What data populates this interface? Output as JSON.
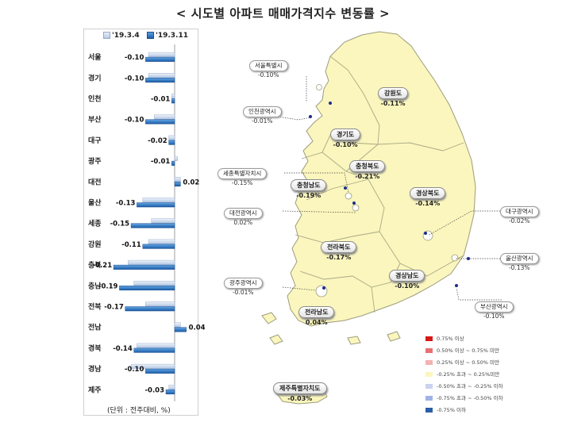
{
  "title": "< 시도별 아파트 매매가격지수 변동률 >",
  "unit_note": "(단위 : 전주대비, %)",
  "colors": {
    "old_series": "#c9d8ec",
    "new_series": "#2b6cb8",
    "land": "#fbf6bd",
    "border": "#9a9a7a"
  },
  "chart_data": {
    "type": "bar",
    "orientation": "horizontal",
    "categories": [
      "서울",
      "경기",
      "인천",
      "부산",
      "대구",
      "광주",
      "대전",
      "울산",
      "세종",
      "강원",
      "충북",
      "충남",
      "전북",
      "전남",
      "경북",
      "경남",
      "제주"
    ],
    "series": [
      {
        "name": "'19.3.4",
        "values": [
          -0.09,
          -0.09,
          -0.01,
          -0.07,
          -0.02,
          0.01,
          0.02,
          -0.11,
          -0.08,
          -0.09,
          -0.16,
          -0.14,
          -0.1,
          0.02,
          -0.13,
          -0.15,
          -0.02
        ]
      },
      {
        "name": "'19.3.11",
        "values": [
          -0.1,
          -0.1,
          -0.01,
          -0.1,
          -0.02,
          -0.01,
          0.02,
          -0.13,
          -0.15,
          -0.11,
          -0.21,
          -0.19,
          -0.17,
          0.04,
          -0.14,
          -0.1,
          -0.03
        ]
      }
    ],
    "value_labels": [
      "-0.10",
      "-0.10",
      "-0.01",
      "-0.10",
      "-0.02",
      "-0.01",
      "0.02",
      "-0.13",
      "-0.15",
      "-0.11",
      "-0.21",
      "-0.19",
      "-0.17",
      "0.04",
      "-0.14",
      "-0.10",
      "-0.03"
    ],
    "title": "",
    "xlabel": "",
    "ylabel": "",
    "xlim": [
      -0.25,
      0.06
    ],
    "grid": false,
    "legend": "top"
  },
  "map": {
    "province_labels": [
      {
        "name": "강원도",
        "value": "-0.11%"
      },
      {
        "name": "경기도",
        "value": "-0.10%"
      },
      {
        "name": "충청북도",
        "value": "-0.21%"
      },
      {
        "name": "충청남도",
        "value": "-0.19%"
      },
      {
        "name": "경상북도",
        "value": "-0.14%"
      },
      {
        "name": "전라북도",
        "value": "-0.17%"
      },
      {
        "name": "경상남도",
        "value": "-0.10%"
      },
      {
        "name": "전라남도",
        "value": "0.04%"
      },
      {
        "name": "제주특별자치도",
        "value": "-0.03%"
      }
    ],
    "city_callouts": [
      {
        "name": "서울특별시",
        "value": "-0.10%"
      },
      {
        "name": "인천광역시",
        "value": "-0.01%"
      },
      {
        "name": "세종특별자치시",
        "value": "-0.15%"
      },
      {
        "name": "대전광역시",
        "value": "0.02%"
      },
      {
        "name": "대구광역시",
        "value": "-0.02%"
      },
      {
        "name": "울산광역시",
        "value": "-0.13%"
      },
      {
        "name": "광주광역시",
        "value": "-0.01%"
      },
      {
        "name": "부산광역시",
        "value": "-0.10%"
      }
    ],
    "legend": [
      {
        "label": "0.75% 이상",
        "color": "#d81818"
      },
      {
        "label": "0.50% 이상 ~ 0.75% 미만",
        "color": "#e87070"
      },
      {
        "label": "0.25% 이상 ~ 0.50% 미만",
        "color": "#f2b2b2"
      },
      {
        "label": "-0.25% 초과 ~ 0.25%미만",
        "color": "#fbf6bd"
      },
      {
        "label": "-0.50% 초과 ~ -0.25% 이하",
        "color": "#c9d3f0"
      },
      {
        "label": "-0.75% 초과 ~ -0.50% 이하",
        "color": "#9fb3e6"
      },
      {
        "label": "-0.75% 이하",
        "color": "#2b5fa8"
      }
    ]
  }
}
